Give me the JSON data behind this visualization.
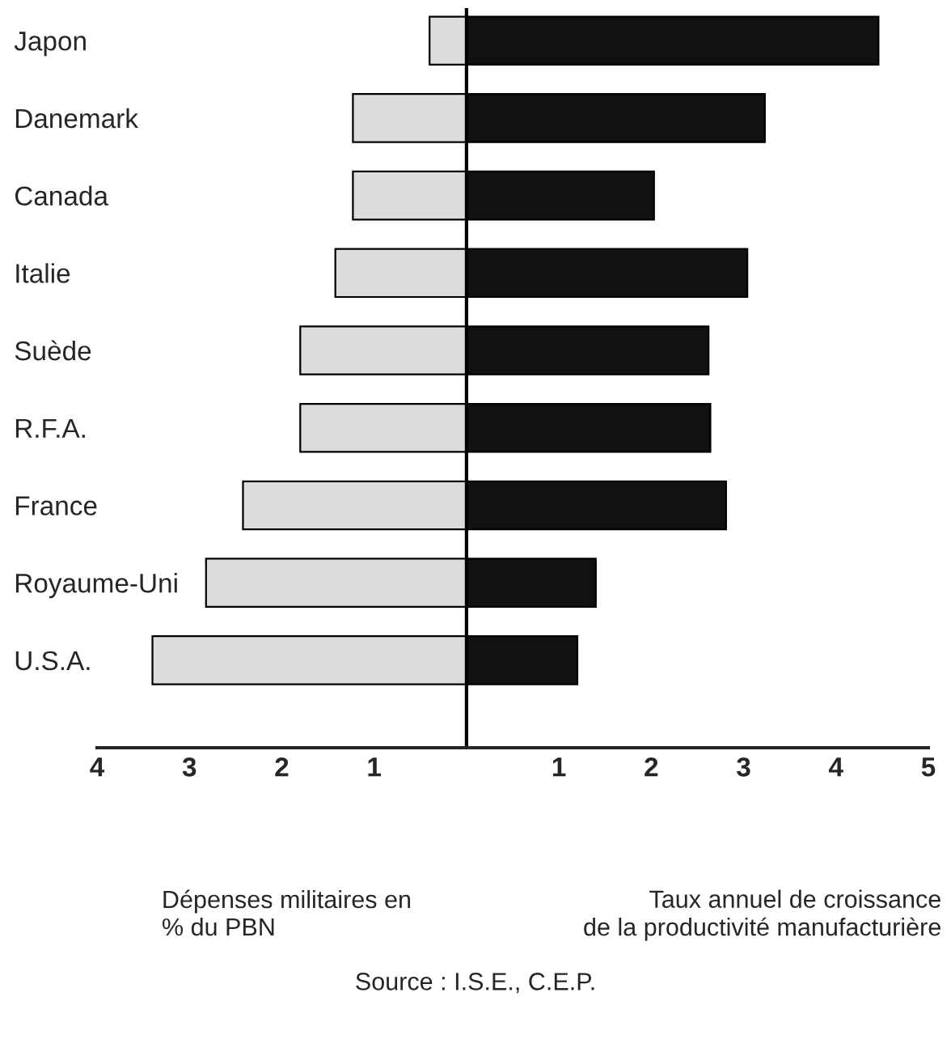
{
  "chart_data": {
    "type": "bar",
    "orientation": "horizontal",
    "stacked": true,
    "categories": [
      "Japon",
      "Danemark",
      "Canada",
      "Italie",
      "Suède",
      "R.F.A.",
      "France",
      "Royaume-Uni",
      "U.S.A."
    ],
    "series": [
      {
        "color": "#dcdcdc",
        "values": [
          -0.4,
          -1.23,
          -1.23,
          -1.42,
          -1.8,
          -1.8,
          -2.42,
          -2.82,
          -3.4
        ]
      },
      {
        "color": "#111111",
        "values": [
          4.46,
          3.23,
          2.03,
          3.04,
          2.62,
          2.64,
          2.81,
          1.4,
          1.2
        ]
      }
    ],
    "xlim": [
      -4,
      5
    ],
    "xticks": [
      {
        "value": -4,
        "label": "4"
      },
      {
        "value": -3,
        "label": "3"
      },
      {
        "value": -2,
        "label": "2"
      },
      {
        "value": -1,
        "label": "1"
      },
      1,
      2,
      3,
      4,
      5
    ],
    "ref_lines": [
      {
        "axis": "x",
        "value": 0,
        "color": "#000000"
      }
    ],
    "grid": false,
    "legend": false,
    "annotations": [
      "Dépenses militaires en\n% du PBN",
      "Taux annuel de croissance\nde la productivité manufacturière",
      "Source : I.S.E., C.E.P."
    ]
  }
}
